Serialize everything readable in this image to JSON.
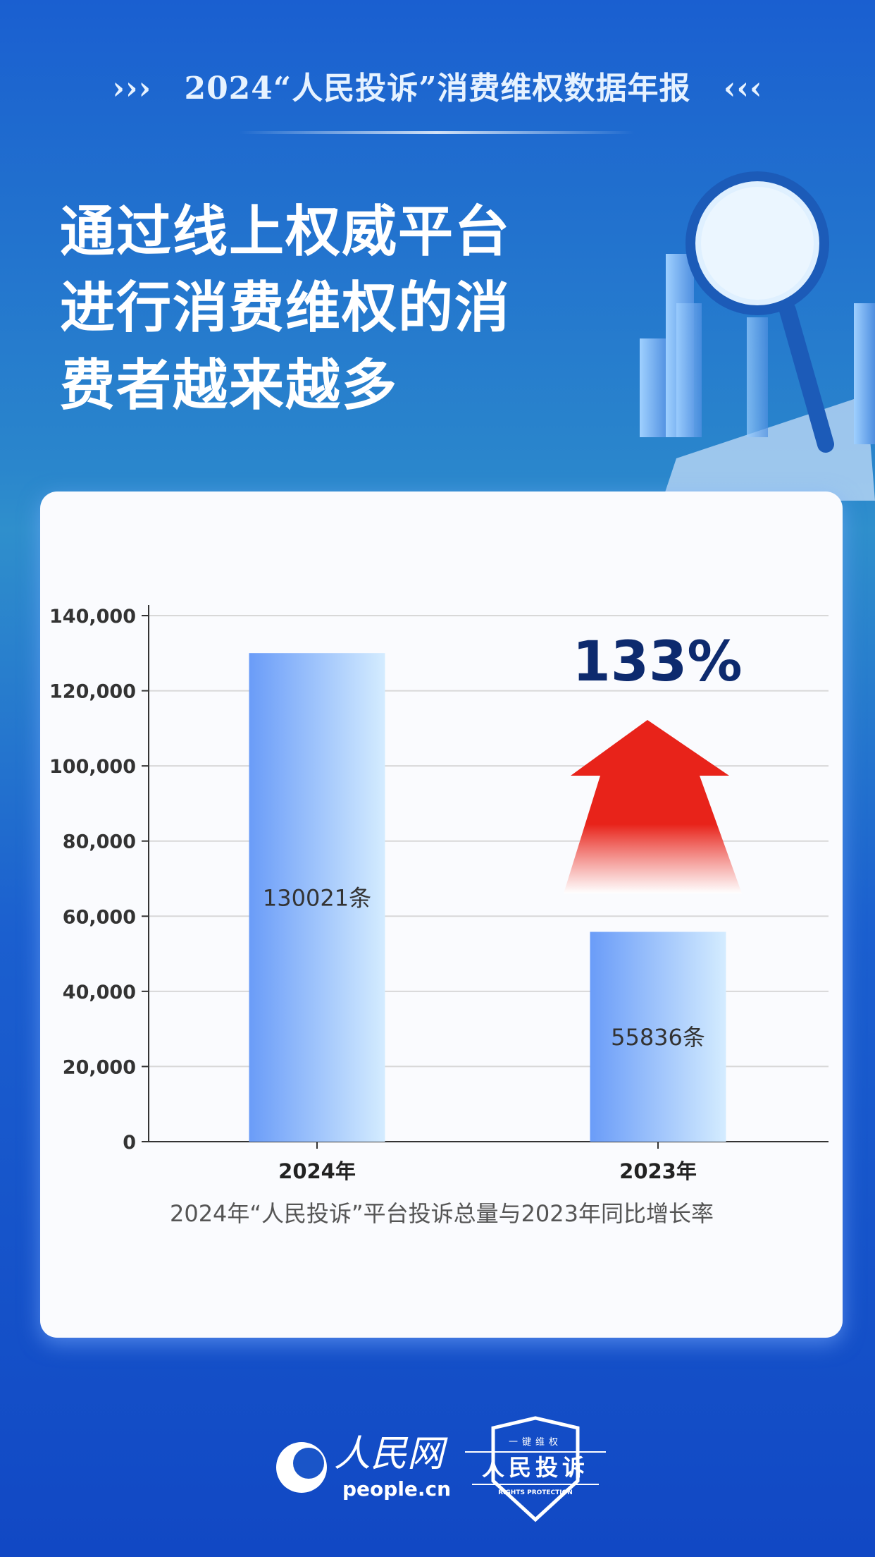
{
  "header": {
    "title": "2024“人民投诉”消费维权数据年报",
    "left_marker": "›››",
    "right_marker": "‹‹‹"
  },
  "headline": [
    "通过线上权威平台",
    "进行消费维权的消",
    "费者越来越多"
  ],
  "chart_data": {
    "type": "bar",
    "categories": [
      "2024年",
      "2023年"
    ],
    "values": [
      130021,
      55836
    ],
    "data_labels": [
      "130021条",
      "55836条"
    ],
    "ylim": [
      0,
      140000
    ],
    "yticks": [
      0,
      20000,
      40000,
      60000,
      80000,
      100000,
      120000,
      140000
    ],
    "ytick_labels": [
      "0",
      "20,000",
      "40,000",
      "60,000",
      "80,000",
      "100,000",
      "120,000",
      "140,000"
    ],
    "grid": true,
    "annotation": "133%",
    "caption": "2024年“人民投诉”平台投诉总量与2023年同比增长率",
    "colors": {
      "bar_start": "#6a9cf8",
      "bar_end": "#d4ecff",
      "arrow": "#e8231a",
      "annotation": "#0d2a6e"
    }
  },
  "footer": {
    "logo1_cn": "人民网",
    "logo1_en": "people.cn",
    "logo2_top": "一键维权",
    "logo2_main": "人民投诉",
    "logo2_sub": "RIGHTS PROTECTION"
  }
}
